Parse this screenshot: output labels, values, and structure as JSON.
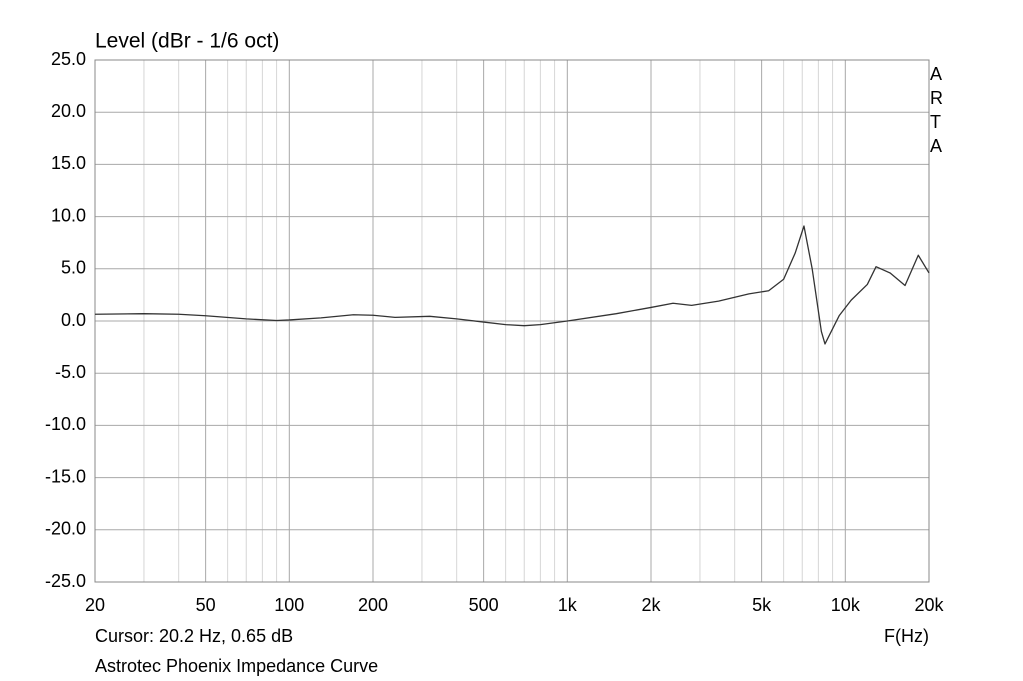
{
  "chart_data": {
    "type": "line",
    "title": "Level (dBr - 1/6 oct)",
    "x_label": "F(Hz)",
    "cursor": "Cursor: 20.2 Hz, 0.65 dB",
    "caption": "Astrotec Phoenix Impedance Curve",
    "watermark": "ARTA",
    "xscale": "log",
    "grid": true,
    "xlim": [
      20,
      20000
    ],
    "ylim": [
      -25,
      25
    ],
    "xticks": [
      20,
      50,
      100,
      200,
      500,
      {
        "value": 1000,
        "label": "1k"
      },
      {
        "value": 2000,
        "label": "2k"
      },
      {
        "value": 5000,
        "label": "5k"
      },
      {
        "value": 10000,
        "label": "10k"
      },
      {
        "value": 20000,
        "label": "20k"
      }
    ],
    "xminorticks": [
      30,
      40,
      60,
      70,
      80,
      90,
      300,
      400,
      600,
      700,
      800,
      900,
      3000,
      4000,
      6000,
      7000,
      8000,
      9000
    ],
    "yticks": [
      {
        "value": 25,
        "label": "25.0"
      },
      {
        "value": 20,
        "label": "20.0"
      },
      {
        "value": 15,
        "label": "15.0"
      },
      {
        "value": 10,
        "label": "10.0"
      },
      {
        "value": 5,
        "label": "5.0"
      },
      {
        "value": 0,
        "label": "0.0"
      },
      {
        "value": -5,
        "label": "-5.0"
      },
      {
        "value": -10,
        "label": "-10.0"
      },
      {
        "value": -15,
        "label": "-15.0"
      },
      {
        "value": -20,
        "label": "-20.0"
      },
      {
        "value": -25,
        "label": "-25.0"
      }
    ],
    "series": [
      {
        "color": "#333333",
        "x": [
          20,
          30,
          40,
          50,
          70,
          90,
          100,
          130,
          170,
          200,
          240,
          320,
          400,
          500,
          600,
          700,
          800,
          1000,
          1500,
          2000,
          2400,
          2800,
          3500,
          4500,
          5300,
          6000,
          6600,
          7100,
          7600,
          8200,
          8450,
          9500,
          10500,
          12000,
          12900,
          14500,
          16400,
          18300,
          20000
        ],
        "values": [
          0.65,
          0.7,
          0.65,
          0.5,
          0.2,
          0.05,
          0.1,
          0.3,
          0.6,
          0.55,
          0.35,
          0.45,
          0.2,
          -0.1,
          -0.35,
          -0.45,
          -0.35,
          0.0,
          0.7,
          1.3,
          1.7,
          1.5,
          1.9,
          2.6,
          2.9,
          4.0,
          6.5,
          9.1,
          5.0,
          -1.0,
          -2.2,
          0.5,
          2.0,
          3.5,
          5.2,
          4.6,
          3.4,
          6.3,
          4.6
        ]
      }
    ]
  }
}
